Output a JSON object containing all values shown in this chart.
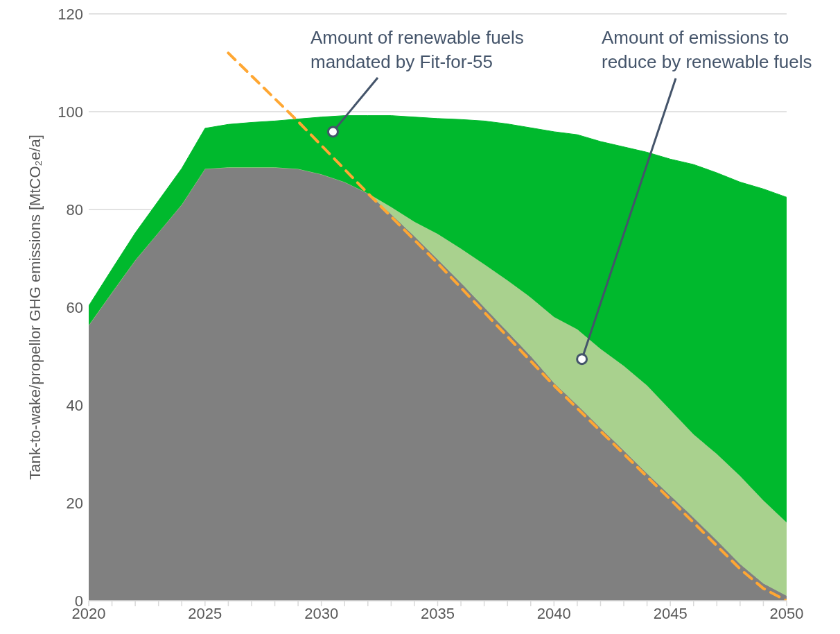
{
  "chart_data": {
    "type": "area",
    "stacked": true,
    "ylabel": "Tank-to-wake/propellor GHG emissions [MtCO₂e/a]",
    "x": [
      2020,
      2021,
      2022,
      2023,
      2024,
      2025,
      2026,
      2027,
      2028,
      2029,
      2030,
      2031,
      2032,
      2033,
      2034,
      2035,
      2036,
      2037,
      2038,
      2039,
      2040,
      2041,
      2042,
      2043,
      2044,
      2045,
      2046,
      2047,
      2048,
      2049,
      2050
    ],
    "series": [
      {
        "color": "#808080",
        "values": [
          56.3,
          63,
          69.6,
          75.3,
          81,
          88.3,
          88.6,
          88.6,
          88.6,
          88.3,
          87.2,
          85.6,
          83.3,
          79,
          74.5,
          69.8,
          65,
          60,
          55,
          50,
          44.5,
          40,
          35.3,
          30.7,
          26,
          21.5,
          17,
          12.3,
          7.5,
          3.5,
          1
        ]
      },
      {
        "color": "#a9d18e",
        "values": [
          0,
          0,
          0,
          0,
          0,
          0,
          0,
          0,
          0,
          0,
          0,
          0,
          0,
          1.5,
          3,
          5.2,
          7,
          8.8,
          10.5,
          12,
          13.5,
          15.5,
          16.2,
          17.3,
          18,
          17.5,
          17,
          17.7,
          18,
          17,
          15
        ]
      },
      {
        "color": "#00b92d",
        "values": [
          4,
          4.8,
          5.6,
          6.5,
          7.4,
          8.3,
          8.8,
          9.2,
          9.5,
          10.2,
          11.7,
          13.6,
          15.9,
          18.7,
          21.4,
          23.6,
          26.4,
          29.3,
          32,
          34.7,
          37.9,
          39.8,
          42.4,
          44.8,
          47.7,
          51.3,
          55.2,
          57.5,
          60.1,
          63.7,
          66.5
        ]
      },
      {
        "type": "line",
        "color": "#ffa733",
        "line_style": "dashed",
        "x": [
          2026,
          2029,
          2032,
          2035,
          2040,
          2045,
          2048,
          2049,
          2050
        ],
        "values": [
          112,
          98,
          83.3,
          69,
          44,
          20.7,
          6.5,
          2.5,
          0
        ]
      }
    ],
    "xlim": [
      2020,
      2050
    ],
    "xticks": [
      2020,
      {
        "value": 2021,
        "label": null
      },
      {
        "value": 2022,
        "label": null
      },
      {
        "value": 2023,
        "label": null
      },
      {
        "value": 2024,
        "label": null
      },
      2025,
      {
        "value": 2026,
        "label": null
      },
      {
        "value": 2027,
        "label": null
      },
      {
        "value": 2028,
        "label": null
      },
      {
        "value": 2029,
        "label": null
      },
      2030,
      {
        "value": 2031,
        "label": null
      },
      {
        "value": 2032,
        "label": null
      },
      {
        "value": 2033,
        "label": null
      },
      {
        "value": 2034,
        "label": null
      },
      2035,
      {
        "value": 2036,
        "label": null
      },
      {
        "value": 2037,
        "label": null
      },
      {
        "value": 2038,
        "label": null
      },
      {
        "value": 2039,
        "label": null
      },
      2040,
      {
        "value": 2041,
        "label": null
      },
      {
        "value": 2042,
        "label": null
      },
      {
        "value": 2043,
        "label": null
      },
      {
        "value": 2044,
        "label": null
      },
      2045,
      {
        "value": 2046,
        "label": null
      },
      {
        "value": 2047,
        "label": null
      },
      {
        "value": 2048,
        "label": null
      },
      {
        "value": 2049,
        "label": null
      },
      2050
    ],
    "ylim": [
      0,
      120
    ],
    "yticks": [
      0,
      20,
      40,
      60,
      80,
      100,
      120
    ],
    "grid": "y",
    "annotations": [
      {
        "text": "Amount of renewable fuels mandated by Fit-for-55",
        "x": 2030.5,
        "y": 95.9
      },
      {
        "text": "Amount of emissions to reduce by renewable fuels",
        "x": 2041.2,
        "y": 49.4
      }
    ]
  }
}
